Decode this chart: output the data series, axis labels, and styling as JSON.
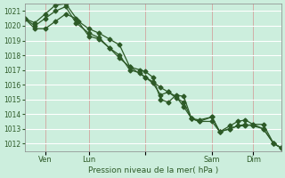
{
  "bg_color": "#cceedd",
  "grid_color": "#ffffff",
  "line_color": "#2d5a27",
  "marker_color": "#2d5a27",
  "ylabel_text": "Pression niveau de la mer( hPa )",
  "ylim": [
    1011.5,
    1021.5
  ],
  "yticks": [
    1012,
    1013,
    1014,
    1015,
    1016,
    1017,
    1018,
    1019,
    1020,
    1021
  ],
  "xtick_positions": [
    0.08,
    0.25,
    0.47,
    0.73,
    0.89
  ],
  "xtick_labels": [
    "Ven",
    "Lun",
    "",
    "Sam",
    "Dim"
  ],
  "series1_x": [
    0.0,
    0.04,
    0.08,
    0.12,
    0.16,
    0.21,
    0.25,
    0.29,
    0.33,
    0.37,
    0.41,
    0.45,
    0.47,
    0.5,
    0.53,
    0.56,
    0.59,
    0.62,
    0.65,
    0.68,
    0.73,
    0.76,
    0.8,
    0.83,
    0.86,
    0.89,
    0.93,
    0.97,
    1.0
  ],
  "series1_y": [
    1020.5,
    1020.2,
    1020.8,
    1021.4,
    1021.5,
    1020.3,
    1019.8,
    1019.5,
    1019.1,
    1018.7,
    1017.2,
    1017.0,
    1016.9,
    1016.5,
    1015.0,
    1014.8,
    1015.3,
    1015.2,
    1013.7,
    1013.6,
    1013.8,
    1012.8,
    1013.2,
    1013.5,
    1013.6,
    1013.3,
    1013.3,
    1012.0,
    1011.7
  ],
  "series2_x": [
    0.0,
    0.04,
    0.08,
    0.12,
    0.16,
    0.2,
    0.25,
    0.29,
    0.33,
    0.37,
    0.41,
    0.45,
    0.47,
    0.5,
    0.53,
    0.56,
    0.59,
    0.62,
    0.65,
    0.68,
    0.73,
    0.76,
    0.8,
    0.83,
    0.86,
    0.89,
    0.93,
    0.97,
    1.0
  ],
  "series2_y": [
    1020.5,
    1020.0,
    1020.5,
    1021.0,
    1021.3,
    1020.2,
    1019.5,
    1019.2,
    1018.5,
    1018.0,
    1017.0,
    1016.8,
    1016.5,
    1016.1,
    1015.3,
    1015.5,
    1015.2,
    1014.5,
    1013.7,
    1013.5,
    1013.8,
    1012.8,
    1013.0,
    1013.2,
    1013.3,
    1013.2,
    1013.0,
    1012.0,
    1011.7
  ],
  "series3_x": [
    0.0,
    0.04,
    0.08,
    0.12,
    0.16,
    0.2,
    0.25,
    0.29,
    0.33,
    0.37,
    0.41,
    0.47,
    0.5,
    0.53,
    0.56,
    0.59,
    0.62,
    0.65,
    0.68,
    0.73,
    0.76,
    0.8,
    0.83,
    0.86,
    0.89,
    0.93,
    0.97,
    1.0
  ],
  "series3_y": [
    1020.5,
    1019.8,
    1019.8,
    1020.3,
    1020.8,
    1020.5,
    1019.3,
    1019.1,
    1018.5,
    1017.8,
    1017.2,
    1016.5,
    1016.2,
    1015.8,
    1015.5,
    1015.1,
    1014.8,
    1013.7,
    1013.5,
    1013.5,
    1012.8,
    1013.0,
    1013.2,
    1013.2,
    1013.3,
    1013.0,
    1012.0,
    1011.7
  ]
}
